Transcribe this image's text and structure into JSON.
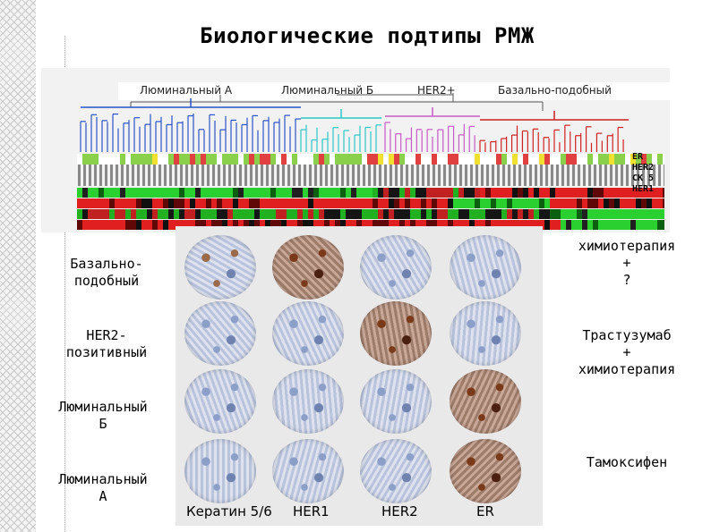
{
  "title": "Биологические подтипы РМЖ",
  "subtypes": [
    "Люминальный А",
    "Люминальный Б",
    "HER2+",
    "Базально-подобный"
  ],
  "markers": [
    "ER",
    "HER2",
    "CK 5",
    "HER1"
  ],
  "row_labels": {
    "basal": "Базально-\nподобный",
    "her2": "HER2-\nпозитивный",
    "lumB": "Люминальный\nБ",
    "lumA": "Люминальный\nА"
  },
  "column_labels": [
    "Кератин 5/6",
    "HER1",
    "HER2",
    "ER"
  ],
  "therapies": {
    "basal": "химиотерапия\n+\n?",
    "her2": "Трастузумаб\n+\nхимиотерапия",
    "lum": "Тамоксифен"
  },
  "colors": {
    "lumA": "#2a52c8",
    "lumB": "#2ac8c8",
    "her2": "#c85ac8",
    "basal": "#d02020",
    "brown_stain": "#7a3a1a",
    "hematoxylin": "#8c9fc8"
  }
}
